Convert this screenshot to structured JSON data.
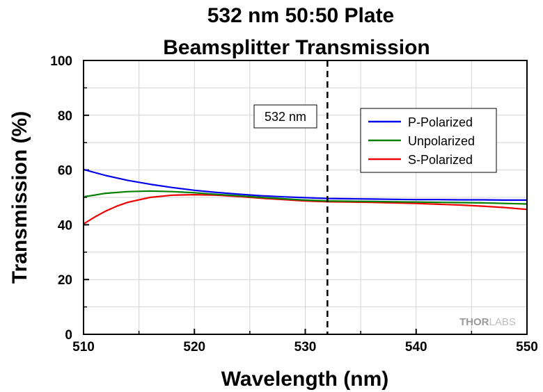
{
  "chart_data": {
    "type": "line",
    "title_lines": [
      "532 nm 50:50 Plate",
      "Beamsplitter Transmission"
    ],
    "xlabel": "Wavelength (nm)",
    "ylabel": "Transmission (%)",
    "xlim": [
      510,
      550
    ],
    "ylim": [
      0,
      100
    ],
    "x_ticks": [
      510,
      520,
      530,
      540,
      550
    ],
    "y_ticks": [
      0,
      20,
      40,
      60,
      80,
      100
    ],
    "grid": true,
    "legend_position": "top-right",
    "series": [
      {
        "name": "P-Polarized",
        "color": "#0000ee",
        "x": [
          510,
          512,
          514,
          516,
          518,
          520,
          522,
          524,
          526,
          528,
          530,
          532,
          534,
          536,
          538,
          540,
          542,
          544,
          546,
          548,
          550
        ],
        "y": [
          60.2,
          58.0,
          56.2,
          54.8,
          53.6,
          52.6,
          51.8,
          51.2,
          50.6,
          50.2,
          49.9,
          49.6,
          49.5,
          49.4,
          49.3,
          49.2,
          49.2,
          49.1,
          49.1,
          49.0,
          49.0
        ]
      },
      {
        "name": "Unpolarized",
        "color": "#008000",
        "x": [
          510,
          512,
          514,
          516,
          518,
          520,
          522,
          524,
          526,
          528,
          530,
          532,
          534,
          536,
          538,
          540,
          542,
          544,
          546,
          548,
          550
        ],
        "y": [
          50.2,
          51.5,
          52.1,
          52.3,
          52.1,
          51.7,
          51.1,
          50.6,
          50.0,
          49.5,
          49.0,
          48.7,
          48.6,
          48.5,
          48.4,
          48.3,
          48.2,
          48.1,
          48.0,
          47.8,
          47.6
        ]
      },
      {
        "name": "S-Polarized",
        "color": "#ee0000",
        "x": [
          510,
          511,
          512,
          513,
          514,
          516,
          518,
          520,
          522,
          524,
          526,
          528,
          530,
          532,
          534,
          536,
          538,
          540,
          542,
          544,
          546,
          548,
          550
        ],
        "y": [
          40.3,
          42.8,
          45.0,
          46.8,
          48.2,
          50.0,
          50.8,
          51.0,
          50.8,
          50.3,
          49.7,
          49.2,
          48.7,
          48.4,
          48.3,
          48.2,
          48.0,
          47.8,
          47.5,
          47.2,
          46.8,
          46.3,
          45.6
        ]
      }
    ],
    "annotations": [
      {
        "type": "vline",
        "x": 532,
        "style": "dashed",
        "color": "#000000"
      },
      {
        "type": "label",
        "text": "532 nm"
      }
    ],
    "logo": {
      "part1": "THOR",
      "part2": "LABS"
    }
  }
}
